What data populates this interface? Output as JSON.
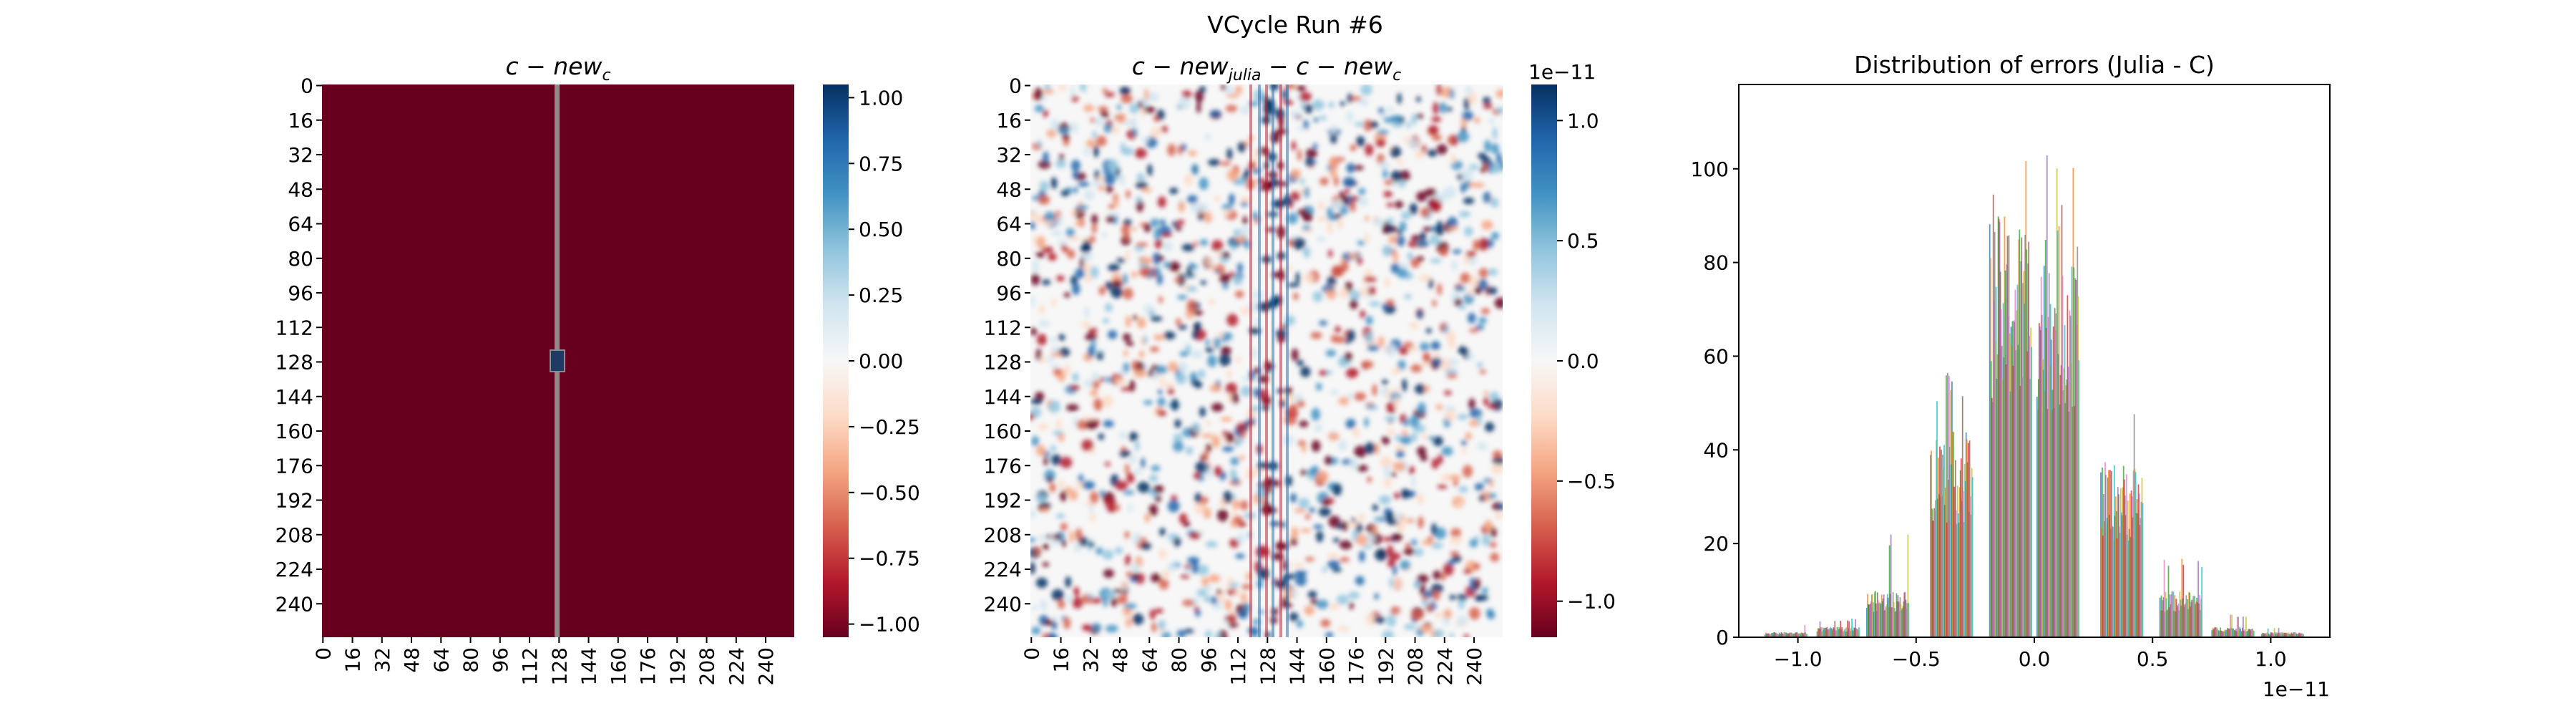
{
  "figure": {
    "suptitle": "VCycle Run #6"
  },
  "chart_data": [
    {
      "type": "heatmap",
      "title": "c − new_c",
      "title_parts": {
        "main": "c − new",
        "sub": "c"
      },
      "xticklabels": [
        "0",
        "16",
        "32",
        "48",
        "64",
        "80",
        "96",
        "112",
        "128",
        "144",
        "160",
        "176",
        "192",
        "208",
        "224",
        "240"
      ],
      "yticklabels": [
        "0",
        "16",
        "32",
        "48",
        "64",
        "80",
        "96",
        "112",
        "128",
        "144",
        "160",
        "176",
        "192",
        "208",
        "224",
        "240"
      ],
      "grid_size": 256,
      "background_value": -1.0,
      "stripe_column": 128,
      "stripe_value": 0.0,
      "center_point": {
        "row": 128,
        "col": 128,
        "value": 1.0
      },
      "colormap": "RdBu",
      "vmin": -1.05,
      "vmax": 1.05,
      "colorbar": {
        "ticks": [
          1.0,
          0.75,
          0.5,
          0.25,
          0.0,
          -0.25,
          -0.5,
          -0.75,
          -1.0
        ],
        "ticklabels": [
          "1.00",
          "0.75",
          "0.50",
          "0.25",
          "0.00",
          "−0.25",
          "−0.50",
          "−0.75",
          "−1.00"
        ]
      }
    },
    {
      "type": "heatmap",
      "title": "c − new_julia − c − new_c",
      "title_parts": {
        "a": "c − new",
        "a_sub": "julia",
        "b": " − c − new",
        "b_sub": "c"
      },
      "xticklabels": [
        "0",
        "16",
        "32",
        "48",
        "64",
        "80",
        "96",
        "112",
        "128",
        "144",
        "160",
        "176",
        "192",
        "208",
        "224",
        "240"
      ],
      "yticklabels": [
        "0",
        "16",
        "32",
        "48",
        "64",
        "80",
        "96",
        "112",
        "128",
        "144",
        "160",
        "176",
        "192",
        "208",
        "224",
        "240"
      ],
      "grid_size": 256,
      "value_range": [
        -1.15e-11,
        1.15e-11
      ],
      "colormap": "RdBu",
      "colorbar": {
        "offset_label": "1e−11",
        "ticks": [
          1.0,
          0.5,
          0.0,
          -0.5,
          -1.0
        ],
        "ticklabels": [
          "1.0",
          "0.5",
          "0.0",
          "−0.5",
          "−1.0"
        ]
      }
    },
    {
      "type": "bar",
      "title": "Distribution of errors (Julia - C)",
      "xlabel_offset": "1e−11",
      "xlim": [
        -1.25e-11,
        1.25e-11
      ],
      "ylim": [
        0,
        118
      ],
      "xticks": [
        -1.0,
        -0.5,
        0.0,
        0.5,
        1.0
      ],
      "xticklabels": [
        "−1.0",
        "−0.5",
        "0.0",
        "0.5",
        "1.0"
      ],
      "yticks": [
        0,
        20,
        40,
        60,
        80,
        100
      ],
      "yticklabels": [
        "0",
        "20",
        "40",
        "60",
        "80",
        "100"
      ],
      "bins": [
        {
          "center": -1.05e-11,
          "typical_count": 1,
          "max_count": 3
        },
        {
          "center": -8.3e-12,
          "typical_count": 2,
          "max_count": 4
        },
        {
          "center": -6.2e-12,
          "typical_count": 9,
          "max_count": 22
        },
        {
          "center": -3.5e-12,
          "typical_count": 40,
          "max_count": 58
        },
        {
          "center": -1e-12,
          "typical_count": 82,
          "max_count": 109
        },
        {
          "center": 1e-12,
          "typical_count": 80,
          "max_count": 104
        },
        {
          "center": 3.7e-12,
          "typical_count": 34,
          "max_count": 50
        },
        {
          "center": 6.2e-12,
          "typical_count": 9,
          "max_count": 17
        },
        {
          "center": 8.4e-12,
          "typical_count": 2,
          "max_count": 5
        },
        {
          "center": 1.05e-11,
          "typical_count": 1,
          "max_count": 2
        }
      ],
      "series_colors": [
        "#1f77b4",
        "#ff7f0e",
        "#2ca02c",
        "#d62728",
        "#9467bd",
        "#8c564b",
        "#e377c2",
        "#7f7f7f",
        "#bcbd22",
        "#17becf"
      ]
    }
  ]
}
